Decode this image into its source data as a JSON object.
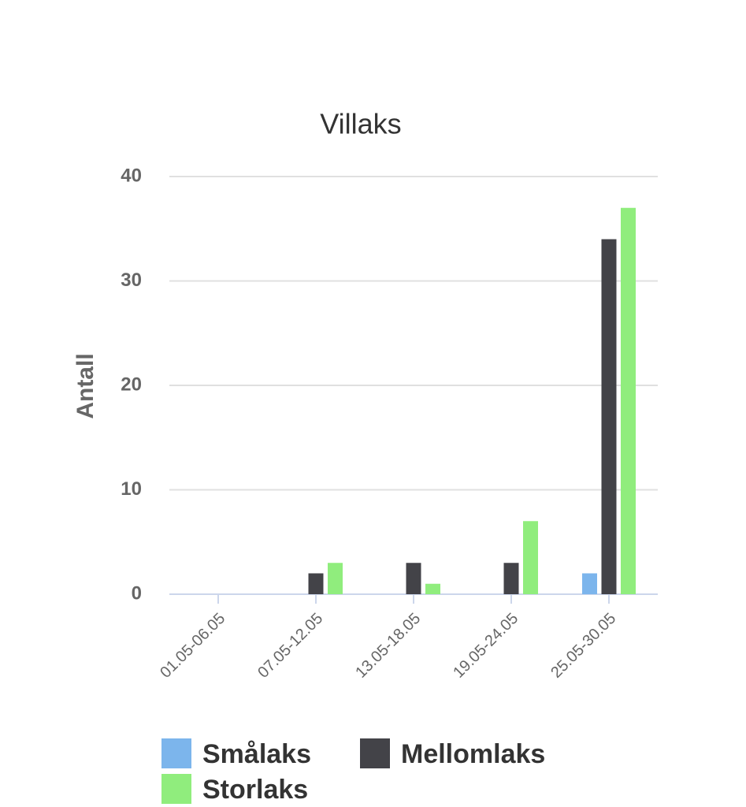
{
  "chart_data": {
    "type": "bar",
    "title": "Villaks",
    "y_label": "Antall",
    "categories": [
      "01.05-06.05",
      "07.05-12.05",
      "13.05-18.05",
      "19.05-24.05",
      "25.05-30.05"
    ],
    "series": [
      {
        "name": "Smålaks",
        "color": "#7cb5ec",
        "values": [
          0,
          0,
          0,
          0,
          2
        ]
      },
      {
        "name": "Mellomlaks",
        "color": "#434348",
        "values": [
          0,
          2,
          3,
          3,
          34
        ]
      },
      {
        "name": "Storlaks",
        "color": "#90ed7d",
        "values": [
          0,
          3,
          1,
          7,
          37
        ]
      }
    ],
    "ylim": [
      0,
      40
    ],
    "yticks": [
      0,
      10,
      20,
      30,
      40
    ],
    "grid": true
  }
}
